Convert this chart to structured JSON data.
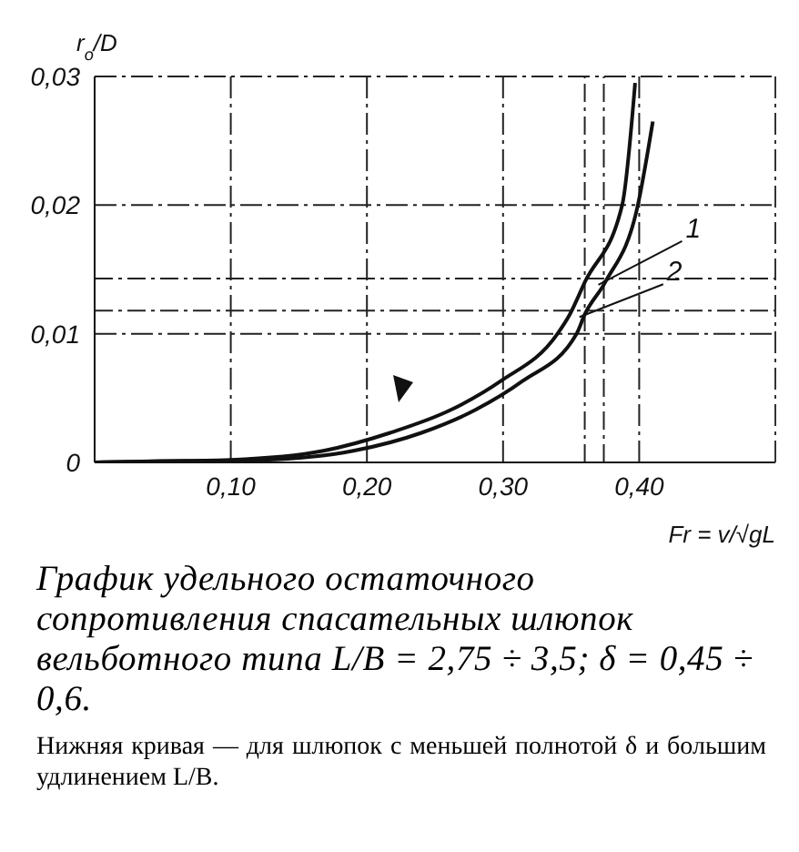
{
  "chart_data": {
    "type": "line",
    "title": "График удельного остаточного сопротивления спасательных шлюпок вельботного типа L/B = 2,75 ÷ 3,5; δ = 0,45 ÷ 0,6.",
    "xlabel": "Fr = v/√gL",
    "ylabel": "r$_{o}$/D",
    "series": [
      {
        "color": "#111111",
        "x": [
          0,
          0.05,
          0.1,
          0.168,
          0.217,
          0.262,
          0.298,
          0.34,
          0.349,
          0.36,
          0.3875,
          0.397
        ],
        "values": [
          0,
          0.0001,
          0.0002,
          0.0009,
          0.0023,
          0.0041,
          0.0063,
          0.01,
          0.0115,
          0.014,
          0.02,
          0.0295
        ]
      },
      {
        "color": "#111111",
        "x": [
          0,
          0.06,
          0.123,
          0.19,
          0.24,
          0.28,
          0.314,
          0.354,
          0.36,
          0.375,
          0.399,
          0.41
        ],
        "values": [
          0,
          0.0001,
          0.0002,
          0.0009,
          0.0023,
          0.0041,
          0.0063,
          0.01,
          0.0115,
          0.014,
          0.02,
          0.0265
        ]
      }
    ],
    "xlim": [
      0,
      0.5
    ],
    "xticks": [
      {
        "value": 0.1,
        "label": "0,10"
      },
      {
        "value": 0.2,
        "label": "0,20"
      },
      {
        "value": 0.3,
        "label": "0,30"
      },
      {
        "value": 0.4,
        "label": "0,40"
      }
    ],
    "ylim": [
      0,
      0.03
    ],
    "yticks": [
      0,
      {
        "value": 0.01,
        "label": "0,01"
      },
      {
        "value": 0.02,
        "label": "0,02"
      },
      {
        "value": 0.03,
        "label": "0,03"
      }
    ],
    "grid": true,
    "legend": false,
    "marker": "none",
    "line_style": "solid",
    "ref_lines": [
      {
        "axis": "y",
        "value": 0.0143,
        "line_style": "dashed"
      },
      {
        "axis": "y",
        "value": 0.0118,
        "line_style": "dashed"
      },
      {
        "axis": "x",
        "value": 0.36,
        "line_style": "dashed"
      },
      {
        "axis": "x",
        "value": 0.374,
        "line_style": "dashed"
      }
    ],
    "annotations": [
      {
        "text": "1",
        "x": 0.374,
        "y": 0.0138
      },
      {
        "text": "2",
        "x": 0.36,
        "y": 0.0113
      },
      "Нижняя кривая — для шлюпок с меньшей полнотой δ и большим удлинением L/B."
    ]
  }
}
